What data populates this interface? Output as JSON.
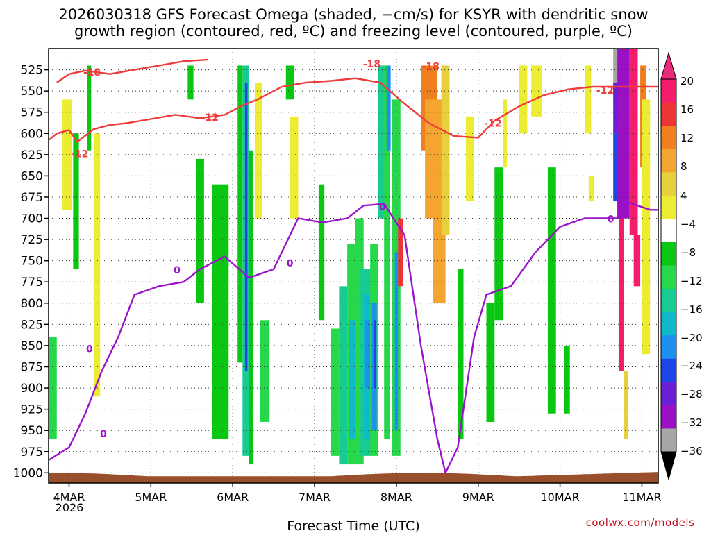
{
  "chart_data": {
    "type": "heatmap",
    "title_lines": [
      "2026030318 GFS Forecast Omega (shaded, −cm/s) for KSYR with dendritic snow",
      "growth region (contoured, red, ºC) and freezing level (contoured, purple, ºC)"
    ],
    "xlabel": "Forecast Time (UTC)",
    "ylabel": "",
    "credit": "coolwx.com/models",
    "x_ticks": [
      "4MAR",
      "5MAR",
      "6MAR",
      "7MAR",
      "8MAR",
      "9MAR",
      "10MAR",
      "11MAR"
    ],
    "x_subtick": "2026",
    "xlim_days": [
      3.75,
      11.2
    ],
    "y_ticks": [
      525,
      550,
      575,
      600,
      625,
      650,
      675,
      700,
      725,
      750,
      775,
      800,
      825,
      850,
      875,
      900,
      925,
      950,
      975,
      1000
    ],
    "y_tick_labels": [
      "525",
      "550",
      "575",
      "600",
      "625",
      "650",
      "675",
      "700",
      "725",
      "750",
      "775",
      "800",
      "825",
      "850",
      "875",
      "900",
      "925",
      "950",
      "975",
      "1000"
    ],
    "ylim_hpa": [
      500,
      1012
    ],
    "grid": true,
    "colorbar": {
      "labels": [
        "20",
        "16",
        "12",
        "8",
        "4",
        "−4",
        "−8",
        "−12",
        "−16",
        "−20",
        "−24",
        "−28",
        "−32",
        "−36"
      ],
      "label_values": [
        20,
        16,
        12,
        8,
        4,
        -4,
        -8,
        -12,
        -16,
        -20,
        -24,
        -28,
        -32,
        -36
      ],
      "colors": [
        "#f41d6b",
        "#ee3535",
        "#ef7f1f",
        "#f3a52f",
        "#e8cf3c",
        "#ecec33",
        "#ffffff",
        "#0ac811",
        "#27d94a",
        "#17cc92",
        "#10b9c8",
        "#1e90f0",
        "#1d45e8",
        "#6a1fd4",
        "#9a10c4",
        "#a6a6a6"
      ],
      "top_triangle_color": "#ea2a7a",
      "bottom_triangle_color": "#000000"
    },
    "contours": {
      "dendritic_growth": {
        "color": "#ef3b3b",
        "labels": [
          "-18",
          "-12"
        ]
      },
      "freezing_level": {
        "color": "#9b12cc",
        "labels": [
          "0"
        ]
      }
    },
    "omega_cells": [
      {
        "t": [
          3.75,
          3.85
        ],
        "p": [
          840,
          960
        ],
        "c": 8
      },
      {
        "t": [
          3.92,
          4.03
        ],
        "p": [
          560,
          690
        ],
        "c": 5
      },
      {
        "t": [
          4.05,
          4.12
        ],
        "p": [
          600,
          760
        ],
        "c": 7
      },
      {
        "t": [
          4.3,
          4.38
        ],
        "p": [
          600,
          910
        ],
        "c": 5
      },
      {
        "t": [
          4.22,
          4.27
        ],
        "p": [
          520,
          620
        ],
        "c": 7
      },
      {
        "t": [
          5.45,
          5.52
        ],
        "p": [
          520,
          560
        ],
        "c": 7
      },
      {
        "t": [
          5.55,
          5.65
        ],
        "p": [
          630,
          800
        ],
        "c": 7
      },
      {
        "t": [
          5.75,
          5.95
        ],
        "p": [
          660,
          960
        ],
        "c": 7
      },
      {
        "t": [
          6.06,
          6.12
        ],
        "p": [
          520,
          870
        ],
        "c": 7
      },
      {
        "t": [
          6.12,
          6.2
        ],
        "p": [
          520,
          980
        ],
        "c": 9
      },
      {
        "t": [
          6.15,
          6.18
        ],
        "p": [
          540,
          880
        ],
        "c": 12
      },
      {
        "t": [
          6.16,
          6.17
        ],
        "p": [
          560,
          700
        ],
        "c": 13
      },
      {
        "t": [
          6.2,
          6.25
        ],
        "p": [
          620,
          990
        ],
        "c": 7
      },
      {
        "t": [
          6.27,
          6.36
        ],
        "p": [
          540,
          700
        ],
        "c": 5
      },
      {
        "t": [
          6.33,
          6.45
        ],
        "p": [
          820,
          940
        ],
        "c": 8
      },
      {
        "t": [
          6.65,
          6.75
        ],
        "p": [
          520,
          560
        ],
        "c": 7
      },
      {
        "t": [
          6.7,
          6.8
        ],
        "p": [
          580,
          700
        ],
        "c": 5
      },
      {
        "t": [
          7.05,
          7.12
        ],
        "p": [
          660,
          820
        ],
        "c": 7
      },
      {
        "t": [
          7.2,
          7.3
        ],
        "p": [
          830,
          980
        ],
        "c": 8
      },
      {
        "t": [
          7.3,
          7.4
        ],
        "p": [
          780,
          990
        ],
        "c": 9
      },
      {
        "t": [
          7.4,
          7.5
        ],
        "p": [
          730,
          990
        ],
        "c": 8
      },
      {
        "t": [
          7.42,
          7.5
        ],
        "p": [
          820,
          960
        ],
        "c": 10
      },
      {
        "t": [
          7.5,
          7.6
        ],
        "p": [
          700,
          990
        ],
        "c": 8
      },
      {
        "t": [
          7.55,
          7.7
        ],
        "p": [
          760,
          980
        ],
        "c": 9
      },
      {
        "t": [
          7.6,
          7.7
        ],
        "p": [
          790,
          960
        ],
        "c": 10
      },
      {
        "t": [
          7.62,
          7.68
        ],
        "p": [
          820,
          900
        ],
        "c": 11
      },
      {
        "t": [
          7.68,
          7.78
        ],
        "p": [
          730,
          980
        ],
        "c": 8
      },
      {
        "t": [
          7.7,
          7.76
        ],
        "p": [
          800,
          950
        ],
        "c": 11
      },
      {
        "t": [
          7.72,
          7.75
        ],
        "p": [
          820,
          900
        ],
        "c": 12
      },
      {
        "t": [
          7.78,
          7.88
        ],
        "p": [
          520,
          700
        ],
        "c": 9
      },
      {
        "t": [
          7.85,
          7.92
        ],
        "p": [
          520,
          960
        ],
        "c": 8
      },
      {
        "t": [
          7.88,
          7.93
        ],
        "p": [
          520,
          620
        ],
        "c": 11
      },
      {
        "t": [
          7.95,
          8.05
        ],
        "p": [
          560,
          980
        ],
        "c": 8
      },
      {
        "t": [
          7.98,
          8.02
        ],
        "p": [
          740,
          950
        ],
        "c": 11
      },
      {
        "t": [
          8.02,
          8.08
        ],
        "p": [
          700,
          780
        ],
        "c": 1
      },
      {
        "t": [
          8.3,
          8.5
        ],
        "p": [
          520,
          620
        ],
        "c": 2
      },
      {
        "t": [
          8.35,
          8.45
        ],
        "p": [
          560,
          700
        ],
        "c": 3
      },
      {
        "t": [
          8.45,
          8.6
        ],
        "p": [
          560,
          800
        ],
        "c": 3
      },
      {
        "t": [
          8.55,
          8.65
        ],
        "p": [
          520,
          720
        ],
        "c": 4
      },
      {
        "t": [
          8.75,
          8.82
        ],
        "p": [
          760,
          960
        ],
        "c": 7
      },
      {
        "t": [
          8.85,
          8.95
        ],
        "p": [
          580,
          680
        ],
        "c": 5
      },
      {
        "t": [
          9.1,
          9.2
        ],
        "p": [
          800,
          940
        ],
        "c": 7
      },
      {
        "t": [
          9.2,
          9.3
        ],
        "p": [
          640,
          820
        ],
        "c": 7
      },
      {
        "t": [
          9.3,
          9.35
        ],
        "p": [
          560,
          640
        ],
        "c": 5
      },
      {
        "t": [
          9.5,
          9.6
        ],
        "p": [
          520,
          600
        ],
        "c": 5
      },
      {
        "t": [
          9.65,
          9.78
        ],
        "p": [
          520,
          580
        ],
        "c": 5
      },
      {
        "t": [
          9.85,
          9.95
        ],
        "p": [
          640,
          930
        ],
        "c": 7
      },
      {
        "t": [
          10.05,
          10.12
        ],
        "p": [
          850,
          930
        ],
        "c": 7
      },
      {
        "t": [
          10.3,
          10.38
        ],
        "p": [
          520,
          600
        ],
        "c": 5
      },
      {
        "t": [
          10.35,
          10.42
        ],
        "p": [
          650,
          680
        ],
        "c": 5
      },
      {
        "t": [
          10.65,
          10.7
        ],
        "p": [
          500,
          560
        ],
        "c": 15
      },
      {
        "t": [
          10.65,
          10.72
        ],
        "p": [
          540,
          600
        ],
        "c": 13
      },
      {
        "t": [
          10.65,
          10.75
        ],
        "p": [
          600,
          680
        ],
        "c": 12
      },
      {
        "t": [
          10.7,
          10.85
        ],
        "p": [
          500,
          700
        ],
        "c": 14
      },
      {
        "t": [
          10.72,
          10.78
        ],
        "p": [
          700,
          880
        ],
        "c": 0
      },
      {
        "t": [
          10.78,
          10.83
        ],
        "p": [
          880,
          960
        ],
        "c": 4
      },
      {
        "t": [
          10.85,
          10.95
        ],
        "p": [
          500,
          720
        ],
        "c": 0
      },
      {
        "t": [
          10.9,
          10.98
        ],
        "p": [
          720,
          780
        ],
        "c": 0
      },
      {
        "t": [
          10.98,
          11.05
        ],
        "p": [
          520,
          640
        ],
        "c": 2
      },
      {
        "t": [
          11.0,
          11.1
        ],
        "p": [
          560,
          860
        ],
        "c": 5
      }
    ],
    "dendritic_contour_-12": [
      [
        3.75,
        608
      ],
      [
        3.85,
        600
      ],
      [
        4.0,
        596
      ],
      [
        4.1,
        610
      ],
      [
        4.3,
        595
      ],
      [
        4.5,
        590
      ],
      [
        4.7,
        588
      ],
      [
        5.0,
        583
      ],
      [
        5.3,
        578
      ],
      [
        5.6,
        582
      ],
      [
        5.9,
        578
      ],
      [
        6.1,
        568
      ],
      [
        6.3,
        560
      ],
      [
        6.6,
        545
      ],
      [
        6.9,
        540
      ],
      [
        7.2,
        538
      ],
      [
        7.5,
        535
      ],
      [
        7.8,
        540
      ],
      [
        8.1,
        565
      ],
      [
        8.4,
        588
      ],
      [
        8.7,
        603
      ],
      [
        9.0,
        605
      ],
      [
        9.2,
        585
      ],
      [
        9.5,
        568
      ],
      [
        9.8,
        555
      ],
      [
        10.1,
        548
      ],
      [
        10.4,
        545
      ],
      [
        10.7,
        545
      ],
      [
        11.2,
        545
      ]
    ],
    "dendritic_contour_-18": [
      [
        3.85,
        540
      ],
      [
        4.0,
        530
      ],
      [
        4.2,
        526
      ],
      [
        4.5,
        530
      ],
      [
        4.8,
        525
      ],
      [
        5.1,
        520
      ],
      [
        5.4,
        515
      ],
      [
        5.7,
        513
      ]
    ],
    "freezing_contour_0": [
      [
        3.75,
        985
      ],
      [
        4.0,
        970
      ],
      [
        4.2,
        930
      ],
      [
        4.4,
        880
      ],
      [
        4.6,
        840
      ],
      [
        4.8,
        790
      ],
      [
        5.1,
        780
      ],
      [
        5.4,
        775
      ],
      [
        5.6,
        760
      ],
      [
        5.9,
        745
      ],
      [
        6.2,
        770
      ],
      [
        6.5,
        760
      ],
      [
        6.8,
        700
      ],
      [
        7.1,
        705
      ],
      [
        7.4,
        700
      ],
      [
        7.6,
        685
      ],
      [
        7.85,
        683
      ],
      [
        8.1,
        720
      ],
      [
        8.3,
        850
      ],
      [
        8.5,
        960
      ],
      [
        8.6,
        1000
      ],
      [
        8.75,
        970
      ],
      [
        8.95,
        840
      ],
      [
        9.1,
        790
      ],
      [
        9.4,
        780
      ],
      [
        9.7,
        740
      ],
      [
        10.0,
        710
      ],
      [
        10.3,
        700
      ],
      [
        10.7,
        700
      ],
      [
        10.8,
        680
      ],
      [
        11.1,
        690
      ],
      [
        11.2,
        690
      ]
    ]
  }
}
